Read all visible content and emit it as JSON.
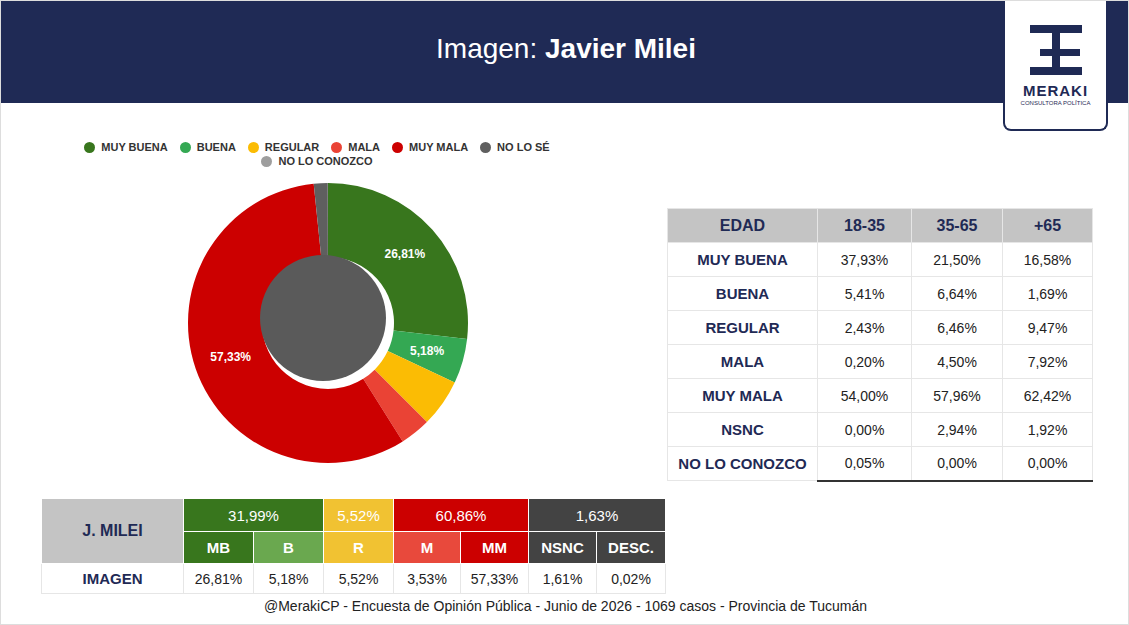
{
  "header": {
    "title_prefix": "Imagen:",
    "title": "Javier Milei",
    "logo": "MERAKI",
    "logo_subtitle": "CONSULTORA POLÍTICA"
  },
  "chart_data": {
    "type": "pie",
    "categories": [
      "MUY BUENA",
      "BUENA",
      "REGULAR",
      "MALA",
      "MUY MALA",
      "NO LO SÉ",
      "NO LO CONOZCO"
    ],
    "values": [
      26.81,
      5.18,
      5.52,
      3.53,
      57.33,
      1.61,
      0.02
    ],
    "colors": [
      "#38761d",
      "#34a853",
      "#fbbc04",
      "#ea4335",
      "#cc0000",
      "#5f5f5f",
      "#9e9e9e"
    ],
    "data_labels": true,
    "value_labels": [
      "26,81%",
      "5,18%",
      null,
      null,
      "57,33%",
      null,
      null
    ],
    "legend": "top"
  },
  "age_table": {
    "columns": [
      "EDAD",
      "18-35",
      "35-65",
      "+65"
    ],
    "rows": [
      [
        "MUY BUENA",
        "37,93%",
        "21,50%",
        "16,58%"
      ],
      [
        "BUENA",
        "5,41%",
        "6,64%",
        "1,69%"
      ],
      [
        "REGULAR",
        "2,43%",
        "6,46%",
        "9,47%"
      ],
      [
        "MALA",
        "0,20%",
        "4,50%",
        "7,92%"
      ],
      [
        "MUY MALA",
        "54,00%",
        "57,96%",
        "62,42%"
      ],
      [
        "NSNC",
        "0,00%",
        "2,94%",
        "1,92%"
      ],
      [
        "NO LO CONOZCO",
        "0,05%",
        "0,00%",
        "0,00%"
      ]
    ]
  },
  "summary_table": {
    "label": "J. MILEI",
    "row_label": "IMAGEN",
    "groups": [
      {
        "total": "31,99%",
        "color": "#38761d",
        "items": [
          {
            "label": "MB",
            "value": "26,81%",
            "color": "#38761d"
          },
          {
            "label": "B",
            "value": "5,18%",
            "color": "#6aa84f"
          }
        ]
      },
      {
        "total": "5,52%",
        "color": "#f1c232",
        "items": [
          {
            "label": "R",
            "value": "5,52%",
            "color": "#f1c232"
          }
        ]
      },
      {
        "total": "60,86%",
        "color": "#cc0000",
        "items": [
          {
            "label": "M",
            "value": "3,53%",
            "color": "#e8493c"
          },
          {
            "label": "MM",
            "value": "57,33%",
            "color": "#cc0000"
          }
        ]
      },
      {
        "total": "1,63%",
        "color": "#434343",
        "items": [
          {
            "label": "NSNC",
            "value": "1,61%",
            "color": "#434343"
          },
          {
            "label": "DESC.",
            "value": "0,02%",
            "color": "#434343"
          }
        ]
      }
    ]
  },
  "footer": "@MerakiCP - Encuesta de Opinión Pública - Junio de 2026 - 1069 casos - Provincia de Tucumán"
}
